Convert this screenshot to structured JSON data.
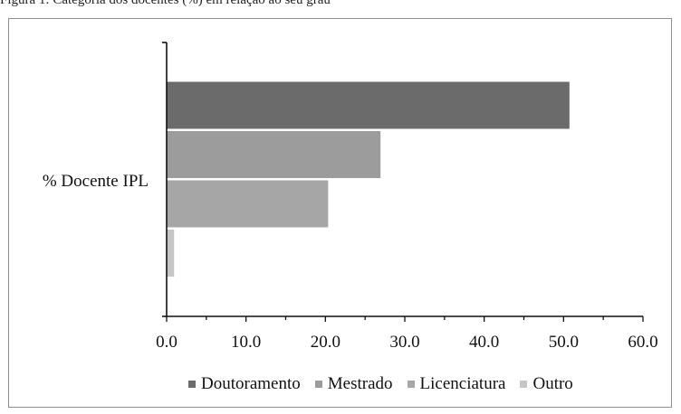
{
  "caption": "Figura 1: Categoria dos docentes (%) em relação ao seu grau",
  "chart_data": {
    "type": "bar",
    "orientation": "horizontal",
    "categories": [
      "% Docente IPL"
    ],
    "series": [
      {
        "name": "Doutoramento",
        "values": [
          50.8
        ],
        "color": "#6b6b6b"
      },
      {
        "name": "Mestrado",
        "values": [
          27.0
        ],
        "color": "#9c9c9c"
      },
      {
        "name": "Licenciatura",
        "values": [
          20.4
        ],
        "color": "#a6a6a6"
      },
      {
        "name": "Outro",
        "values": [
          1.0
        ],
        "color": "#c6c6c6"
      }
    ],
    "xlim": [
      0,
      60
    ],
    "xticks": [
      "0.0",
      "10.0",
      "20.0",
      "30.0",
      "40.0",
      "50.0",
      "60.0"
    ],
    "title": "",
    "xlabel": "",
    "ylabel": "",
    "grid": false,
    "legend_position": "bottom"
  }
}
